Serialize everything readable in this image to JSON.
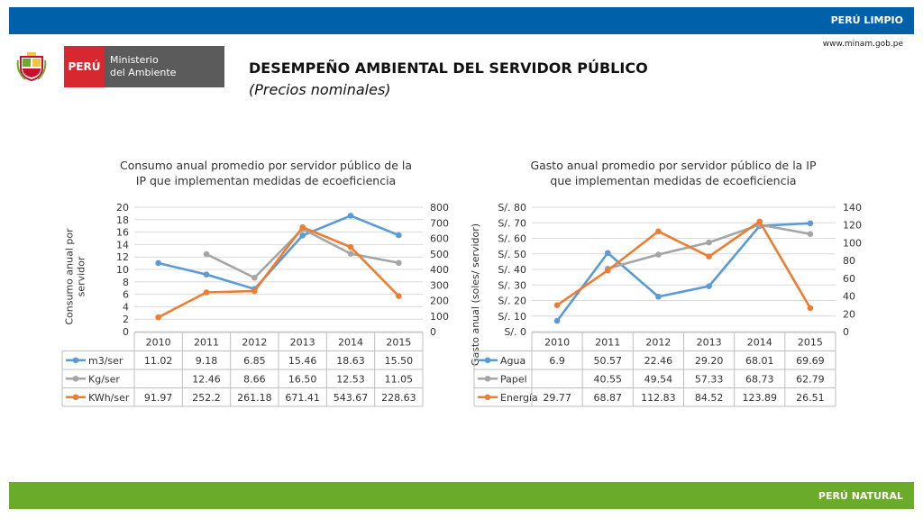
{
  "header": {
    "brand": "PERÚ LIMPIO",
    "website": "www.minam.gob.pe"
  },
  "footer": {
    "brand": "PERÚ NATURAL"
  },
  "logo": {
    "country": "PERÚ",
    "line1": "Ministerio",
    "line2": "del Ambiente"
  },
  "page": {
    "title": "DESEMPEÑO AMBIENTAL DEL SERVIDOR PÚBLICO",
    "subtitle": "(Precios nominales)"
  },
  "colors": {
    "blue": "#5b9bd5",
    "gray": "#a5a5a5",
    "orange": "#ed7d31"
  },
  "chart_data": [
    {
      "type": "line",
      "title": [
        "Consumo anual promedio por servidor público de la",
        "IP que implementan medidas de ecoeficiencia"
      ],
      "ylabel": [
        "Consumo anual por",
        "servidor"
      ],
      "categories": [
        "2010",
        "2011",
        "2012",
        "2013",
        "2014",
        "2015"
      ],
      "y_left": {
        "min": 0,
        "max": 20,
        "step": 2,
        "ticks": [
          "0",
          "2",
          "4",
          "6",
          "8",
          "10",
          "12",
          "14",
          "16",
          "18",
          "20"
        ]
      },
      "y_right": {
        "min": 0,
        "max": 800,
        "step": 100,
        "ticks": [
          "0",
          "100",
          "200",
          "300",
          "400",
          "500",
          "600",
          "700",
          "800"
        ]
      },
      "series": [
        {
          "name": "m3/ser",
          "axis": "left",
          "color": "#5b9bd5",
          "values": [
            11.02,
            9.18,
            6.85,
            15.46,
            18.63,
            15.5
          ],
          "labels": [
            "11.02",
            "9.18",
            "6.85",
            "15.46",
            "18.63",
            "15.50"
          ]
        },
        {
          "name": "Kg/ser",
          "axis": "left",
          "color": "#a5a5a5",
          "values": [
            null,
            12.46,
            8.66,
            16.5,
            12.53,
            11.05
          ],
          "labels": [
            "",
            "12.46",
            "8.66",
            "16.50",
            "12.53",
            "11.05"
          ]
        },
        {
          "name": "KWh/ser",
          "axis": "right",
          "color": "#ed7d31",
          "values": [
            91.97,
            252.2,
            261.18,
            671.41,
            543.67,
            228.63
          ],
          "labels": [
            "91.97",
            "252.2",
            "261.18",
            "671.41",
            "543.67",
            "228.63"
          ]
        }
      ]
    },
    {
      "type": "line",
      "title": [
        "Gasto anual promedio por servidor público de la IP",
        "que implementan medidas de ecoeficiencia"
      ],
      "ylabel": [
        "Gasto anual  (soles/ servidor)"
      ],
      "categories": [
        "2010",
        "2011",
        "2012",
        "2013",
        "2014",
        "2015"
      ],
      "y_left": {
        "min": 0,
        "max": 0.8,
        "step": 0.1,
        "ticks": [
          "S/. 0",
          "S/. 10",
          "S/. 20",
          "S/. 30",
          "S/. 40",
          "S/. 50",
          "S/. 60",
          "S/. 70",
          "S/. 80"
        ]
      },
      "y_right": {
        "min": 0,
        "max": 140,
        "step": 20,
        "ticks": [
          "0",
          "20",
          "40",
          "60",
          "80",
          "100",
          "120",
          "140"
        ]
      },
      "series": [
        {
          "name": "Agua",
          "axis": "left",
          "color": "#5b9bd5",
          "values": [
            0.069,
            0.5057,
            0.2246,
            0.292,
            0.6801,
            0.6969
          ],
          "labels": [
            "6.9",
            "50.57",
            "22.46",
            "29.20",
            "68.01",
            "69.69"
          ]
        },
        {
          "name": "Papel",
          "axis": "left",
          "color": "#a5a5a5",
          "values": [
            null,
            0.4055,
            0.4954,
            0.5733,
            0.6873,
            0.6279
          ],
          "labels": [
            "",
            "40.55",
            "49.54",
            "57.33",
            "68.73",
            "62.79"
          ]
        },
        {
          "name": "Energía",
          "axis": "right",
          "color": "#ed7d31",
          "values": [
            29.77,
            68.87,
            112.83,
            84.52,
            123.89,
            26.51
          ],
          "labels": [
            "29.77",
            "68.87",
            "112.83",
            "84.52",
            "123.89",
            "26.51"
          ]
        }
      ]
    }
  ]
}
